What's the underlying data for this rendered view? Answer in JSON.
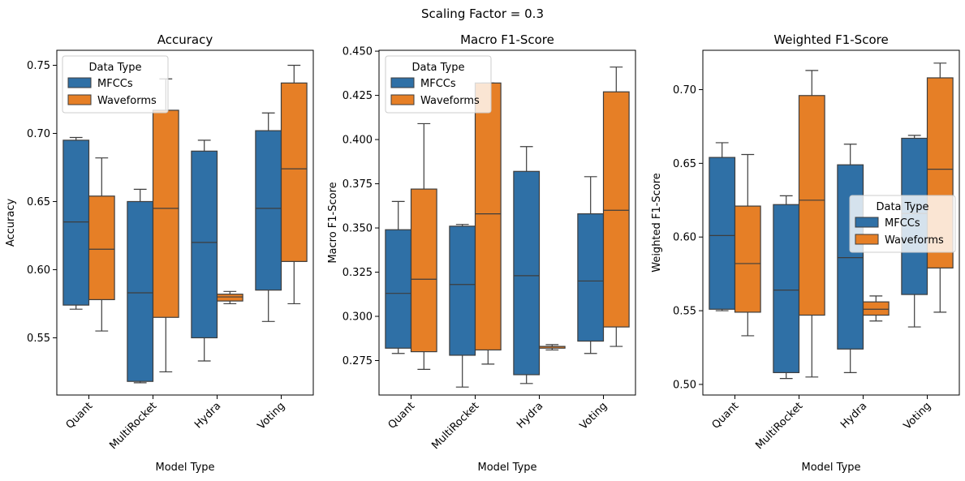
{
  "figure": {
    "suptitle": "Scaling Factor = 0.3"
  },
  "colors": {
    "MFCCs": "#2f70a6",
    "Waveforms": "#e67f26",
    "line": "#3d3d3d"
  },
  "chart_data": [
    {
      "type": "box",
      "title": "Accuracy",
      "xlabel": "Model Type",
      "ylabel": "Accuracy",
      "ylim": [
        0.508,
        0.761
      ],
      "yticks": [
        "0.55",
        "0.60",
        "0.65",
        "0.70",
        "0.75"
      ],
      "categories": [
        "Quant",
        "MultiRocket",
        "Hydra",
        "Voting"
      ],
      "legend": {
        "title": "Data Type",
        "location": "upper-left",
        "entries": [
          "MFCCs",
          "Waveforms"
        ]
      },
      "series": [
        {
          "name": "MFCCs",
          "boxes": [
            {
              "whislo": 0.571,
              "q1": 0.574,
              "med": 0.635,
              "q3": 0.695,
              "whishi": 0.697
            },
            {
              "whislo": 0.517,
              "q1": 0.518,
              "med": 0.583,
              "q3": 0.65,
              "whishi": 0.659
            },
            {
              "whislo": 0.533,
              "q1": 0.55,
              "med": 0.62,
              "q3": 0.687,
              "whishi": 0.695
            },
            {
              "whislo": 0.562,
              "q1": 0.585,
              "med": 0.645,
              "q3": 0.702,
              "whishi": 0.715
            }
          ]
        },
        {
          "name": "Waveforms",
          "boxes": [
            {
              "whislo": 0.555,
              "q1": 0.578,
              "med": 0.615,
              "q3": 0.654,
              "whishi": 0.682
            },
            {
              "whislo": 0.525,
              "q1": 0.565,
              "med": 0.645,
              "q3": 0.717,
              "whishi": 0.74
            },
            {
              "whislo": 0.575,
              "q1": 0.577,
              "med": 0.58,
              "q3": 0.582,
              "whishi": 0.584
            },
            {
              "whislo": 0.575,
              "q1": 0.606,
              "med": 0.674,
              "q3": 0.737,
              "whishi": 0.75
            }
          ]
        }
      ]
    },
    {
      "type": "box",
      "title": "Macro F1-Score",
      "xlabel": "Model Type",
      "ylabel": "Macro F1-Score",
      "ylim": [
        0.2555,
        0.4505
      ],
      "yticks": [
        "0.275",
        "0.300",
        "0.325",
        "0.350",
        "0.375",
        "0.400",
        "0.425",
        "0.450"
      ],
      "categories": [
        "Quant",
        "MultiRocket",
        "Hydra",
        "Voting"
      ],
      "legend": {
        "title": "Data Type",
        "location": "upper-left",
        "entries": [
          "MFCCs",
          "Waveforms"
        ]
      },
      "series": [
        {
          "name": "MFCCs",
          "boxes": [
            {
              "whislo": 0.279,
              "q1": 0.282,
              "med": 0.313,
              "q3": 0.349,
              "whishi": 0.365
            },
            {
              "whislo": 0.26,
              "q1": 0.278,
              "med": 0.318,
              "q3": 0.351,
              "whishi": 0.352
            },
            {
              "whislo": 0.262,
              "q1": 0.267,
              "med": 0.323,
              "q3": 0.382,
              "whishi": 0.396
            },
            {
              "whislo": 0.279,
              "q1": 0.286,
              "med": 0.32,
              "q3": 0.358,
              "whishi": 0.379
            }
          ]
        },
        {
          "name": "Waveforms",
          "boxes": [
            {
              "whislo": 0.27,
              "q1": 0.28,
              "med": 0.321,
              "q3": 0.372,
              "whishi": 0.409
            },
            {
              "whislo": 0.273,
              "q1": 0.281,
              "med": 0.358,
              "q3": 0.432,
              "whishi": 0.432
            },
            {
              "whislo": 0.281,
              "q1": 0.282,
              "med": 0.283,
              "q3": 0.283,
              "whishi": 0.284
            },
            {
              "whislo": 0.283,
              "q1": 0.294,
              "med": 0.36,
              "q3": 0.427,
              "whishi": 0.441
            }
          ]
        }
      ]
    },
    {
      "type": "box",
      "title": "Weighted F1-Score",
      "xlabel": "Model Type",
      "ylabel": "Weighted F1-Score",
      "ylim": [
        0.4928,
        0.7267
      ],
      "yticks": [
        "0.50",
        "0.55",
        "0.60",
        "0.65",
        "0.70"
      ],
      "categories": [
        "Quant",
        "MultiRocket",
        "Hydra",
        "Voting"
      ],
      "legend": {
        "title": "Data Type",
        "location": "center-right",
        "entries": [
          "MFCCs",
          "Waveforms"
        ]
      },
      "series": [
        {
          "name": "MFCCs",
          "boxes": [
            {
              "whislo": 0.55,
              "q1": 0.551,
              "med": 0.601,
              "q3": 0.654,
              "whishi": 0.664
            },
            {
              "whislo": 0.504,
              "q1": 0.508,
              "med": 0.564,
              "q3": 0.622,
              "whishi": 0.628
            },
            {
              "whislo": 0.508,
              "q1": 0.524,
              "med": 0.586,
              "q3": 0.649,
              "whishi": 0.663
            },
            {
              "whislo": 0.539,
              "q1": 0.561,
              "med": 0.616,
              "q3": 0.667,
              "whishi": 0.669
            }
          ]
        },
        {
          "name": "Waveforms",
          "boxes": [
            {
              "whislo": 0.533,
              "q1": 0.549,
              "med": 0.582,
              "q3": 0.621,
              "whishi": 0.656
            },
            {
              "whislo": 0.505,
              "q1": 0.547,
              "med": 0.625,
              "q3": 0.696,
              "whishi": 0.713
            },
            {
              "whislo": 0.543,
              "q1": 0.547,
              "med": 0.551,
              "q3": 0.556,
              "whishi": 0.56
            },
            {
              "whislo": 0.549,
              "q1": 0.579,
              "med": 0.646,
              "q3": 0.708,
              "whishi": 0.718
            }
          ]
        }
      ]
    }
  ]
}
